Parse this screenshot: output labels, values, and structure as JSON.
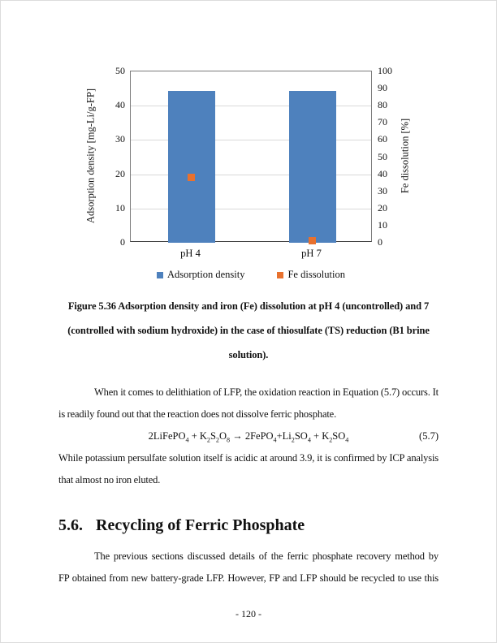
{
  "figure": {
    "chart_data": {
      "type": "bar",
      "categories": [
        "pH 4",
        "pH 7"
      ],
      "series": [
        {
          "name": "Adsorption density",
          "type": "bar",
          "axis": "left",
          "color": "#4E81BD",
          "values": [
            44.3,
            44.4
          ]
        },
        {
          "name": "Fe dissolution",
          "type": "scatter",
          "axis": "right",
          "color": "#E8712E",
          "values": [
            38,
            1
          ]
        }
      ],
      "left_axis": {
        "label": "Adsorption density [mg-Li/g-FP]",
        "min": 0,
        "max": 50,
        "step": 10
      },
      "right_axis": {
        "label": "Fe dissolution [%]",
        "min": 0,
        "max": 100,
        "step": 10
      },
      "grid": true,
      "legend_position": "bottom"
    }
  },
  "caption": {
    "lines": [
      "Figure 5.36 Adsorption density and iron (Fe) dissolution at pH 4 (uncontrolled) and 7",
      "(controlled with sodium hydroxide) in the case of thiosulfate (TS) reduction (B1 brine",
      "solution)."
    ]
  },
  "para1": {
    "lines": [
      {
        "text": "When it comes to delithiation of LFP, the oxidation reaction in Equation  (5.7)  occurs. It",
        "indent": true,
        "fill": true
      },
      {
        "text": "is readily found out that the reaction does not dissolve ferric phosphate.",
        "indent": false,
        "fill": false
      }
    ]
  },
  "equation": {
    "number": "(5.7)",
    "segments": [
      {
        "t": "n",
        "v": "2LiFePO"
      },
      {
        "t": "s",
        "v": "4"
      },
      {
        "t": "n",
        "v": " + K"
      },
      {
        "t": "s",
        "v": "2"
      },
      {
        "t": "n",
        "v": "S"
      },
      {
        "t": "s",
        "v": "2"
      },
      {
        "t": "n",
        "v": "O"
      },
      {
        "t": "s",
        "v": "8"
      },
      {
        "t": "n",
        "v": " → 2FePO"
      },
      {
        "t": "s",
        "v": "4"
      },
      {
        "t": "n",
        "v": "+Li"
      },
      {
        "t": "s",
        "v": "2"
      },
      {
        "t": "n",
        "v": "SO"
      },
      {
        "t": "s",
        "v": "4"
      },
      {
        "t": "n",
        "v": " + K"
      },
      {
        "t": "s",
        "v": "2"
      },
      {
        "t": "n",
        "v": "SO"
      },
      {
        "t": "s",
        "v": "4"
      }
    ]
  },
  "para2": {
    "lines": [
      {
        "text": "While potassium persulfate solution itself is acidic at around 3.9, it is confirmed by ICP analysis",
        "indent": false,
        "fill": true
      },
      {
        "text": "that almost no iron eluted.",
        "indent": false,
        "fill": false
      }
    ]
  },
  "heading": {
    "number": "5.6.",
    "title": "Recycling of Ferric Phosphate"
  },
  "para3": {
    "lines": [
      {
        "text": "The previous sections discussed details of the ferric phosphate recovery method by using",
        "indent": true,
        "fill": true
      },
      {
        "text": "FP obtained from new battery-grade LFP. However, FP and LFP should be recycled to use this",
        "indent": false,
        "fill": true
      }
    ]
  },
  "footer": {
    "page_label": "-  120  -"
  }
}
